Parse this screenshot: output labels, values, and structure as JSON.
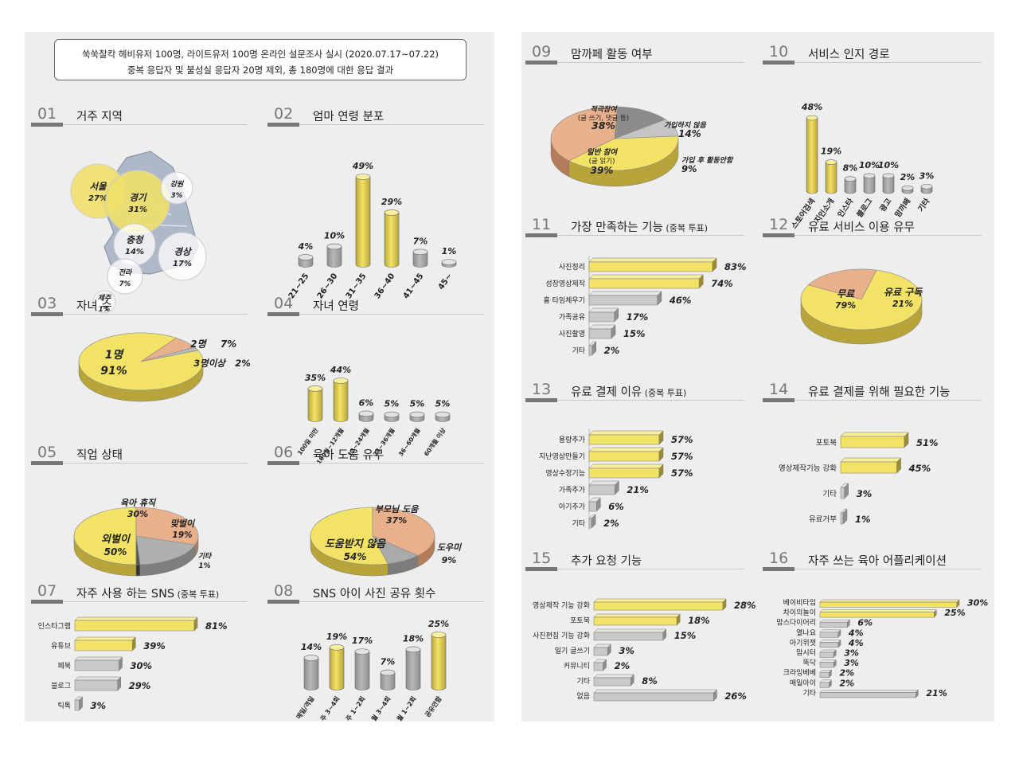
{
  "survey_note": {
    "line1": "쑥쑥찰칵 헤비유저 100명, 라이트유저 100명 온라인 설문조사 실시 (2020.07.17~07.22)",
    "line2": "중복 응답자 및 불성실 응답자 20명 제외, 총 180명에 대한 응답 결과"
  },
  "colors": {
    "yellow": "#f2e265",
    "peach": "#e9b08c",
    "gray": "#9a9a9a",
    "lightgray": "#c8c8c8",
    "bg": "#eeeeee"
  },
  "sections": {
    "s01": {
      "num": "01",
      "title": "거주 지역"
    },
    "s02": {
      "num": "02",
      "title": "엄마 연령 분포"
    },
    "s03": {
      "num": "03",
      "title": "자녀 수"
    },
    "s04": {
      "num": "04",
      "title": "자녀 연령"
    },
    "s05": {
      "num": "05",
      "title": "직업 상태"
    },
    "s06": {
      "num": "06",
      "title": "육아 도움 유무"
    },
    "s07": {
      "num": "07",
      "title": "자주 사용 하는 SNS",
      "note": "(중복 투표)"
    },
    "s08": {
      "num": "08",
      "title": "SNS 아이 사진 공유 횟수"
    },
    "s09": {
      "num": "09",
      "title": "맘까페 활동 여부"
    },
    "s10": {
      "num": "10",
      "title": "서비스 인지 경로"
    },
    "s11": {
      "num": "11",
      "title": "가장 만족하는 기능",
      "note": "(중복 투표)"
    },
    "s12": {
      "num": "12",
      "title": "유료 서비스 이용 유무"
    },
    "s13": {
      "num": "13",
      "title": "유료 결제 이유",
      "note": "(중복 투표)"
    },
    "s14": {
      "num": "14",
      "title": "유료 결제를 위해 필요한 기능"
    },
    "s15": {
      "num": "15",
      "title": "추가 요청 기능"
    },
    "s16": {
      "num": "16",
      "title": "자주 쓰는 육아 어플리케이션"
    }
  },
  "chart_data": [
    {
      "id": "c01",
      "type": "bubble-map",
      "unit": "%",
      "regions": [
        {
          "name": "서울",
          "value": 27
        },
        {
          "name": "경기",
          "value": 31
        },
        {
          "name": "강원",
          "value": 3
        },
        {
          "name": "충청",
          "value": 14
        },
        {
          "name": "경상",
          "value": 17
        },
        {
          "name": "전라",
          "value": 7
        },
        {
          "name": "제주",
          "value": 1
        }
      ]
    },
    {
      "id": "c02",
      "type": "bar",
      "unit": "%",
      "categories": [
        "21~25",
        "26~30",
        "31~35",
        "36~40",
        "41~45",
        "45~"
      ],
      "values": [
        4,
        10,
        49,
        29,
        7,
        1
      ],
      "highlight": [
        2,
        3
      ],
      "ylim": [
        0,
        49
      ]
    },
    {
      "id": "c03",
      "type": "pie",
      "unit": "%",
      "slices": [
        {
          "label": "1명",
          "value": 91
        },
        {
          "label": "2명",
          "value": 7
        },
        {
          "label": "3명이상",
          "value": 2
        }
      ]
    },
    {
      "id": "c04",
      "type": "bar",
      "unit": "%",
      "categories": [
        "100일 미만",
        "100일~12개월",
        "12~24개월",
        "24~36개월",
        "36~60개월",
        "60개월 이상"
      ],
      "values": [
        35,
        44,
        6,
        5,
        5,
        5
      ],
      "highlight": [
        0,
        1
      ],
      "ylim": [
        0,
        44
      ]
    },
    {
      "id": "c05",
      "type": "pie",
      "unit": "%",
      "slices": [
        {
          "label": "외벌이",
          "value": 50
        },
        {
          "label": "육아 휴직",
          "value": 30
        },
        {
          "label": "맞벌이",
          "value": 19
        },
        {
          "label": "기타",
          "value": 1
        }
      ]
    },
    {
      "id": "c06",
      "type": "pie",
      "unit": "%",
      "slices": [
        {
          "label": "도움받지 않음",
          "value": 54
        },
        {
          "label": "부모님 도움",
          "value": 37
        },
        {
          "label": "도우미",
          "value": 9
        }
      ]
    },
    {
      "id": "c07",
      "type": "hbar",
      "unit": "%",
      "categories": [
        "인스타그램",
        "유튜브",
        "페북",
        "블로그",
        "틱톡"
      ],
      "values": [
        81,
        39,
        30,
        29,
        3
      ],
      "highlight": [
        0,
        1
      ],
      "xlim": [
        0,
        81
      ]
    },
    {
      "id": "c08",
      "type": "bar",
      "unit": "%",
      "categories": [
        "매일/격일",
        "주 3~4회",
        "주 1~2회",
        "월 3~4회",
        "월 1~2회",
        "공유안함"
      ],
      "values": [
        14,
        19,
        17,
        7,
        18,
        25
      ],
      "highlight": [
        1,
        5
      ],
      "ylim": [
        0,
        25
      ]
    },
    {
      "id": "c09",
      "type": "pie",
      "unit": "%",
      "slices": [
        {
          "label": "일반 참여",
          "sublabel": "(글 읽기)",
          "value": 39
        },
        {
          "label": "적극참여",
          "sublabel": "(글 쓰기, 댓글 등)",
          "value": 38
        },
        {
          "label": "가입하지 않음",
          "value": 14
        },
        {
          "label": "가입 후 활동안함",
          "value": 9
        }
      ]
    },
    {
      "id": "c10",
      "type": "bar",
      "unit": "%",
      "categories": [
        "스토어검색",
        "지인소개",
        "인스타",
        "블로그",
        "광고",
        "맘까페",
        "기타"
      ],
      "values": [
        48,
        19,
        8,
        10,
        10,
        2,
        3
      ],
      "highlight": [
        0,
        1
      ],
      "ylim": [
        0,
        48
      ]
    },
    {
      "id": "c11",
      "type": "hbar",
      "unit": "%",
      "categories": [
        "사진정리",
        "성장영상제작",
        "흄 타임체우기",
        "가족공유",
        "사진촬영",
        "기타"
      ],
      "values": [
        83,
        74,
        46,
        17,
        15,
        2
      ],
      "highlight": [
        0,
        1
      ],
      "xlim": [
        0,
        83
      ]
    },
    {
      "id": "c12",
      "type": "pie",
      "unit": "%",
      "slices": [
        {
          "label": "무료",
          "value": 79
        },
        {
          "label": "유료 구독",
          "value": 21
        }
      ]
    },
    {
      "id": "c13",
      "type": "hbar",
      "unit": "%",
      "categories": [
        "용량추가",
        "지난영상만들기",
        "영상수정기능",
        "가족추가",
        "아기추가",
        "기타"
      ],
      "values": [
        57,
        57,
        57,
        21,
        6,
        2
      ],
      "highlight": [
        0,
        1,
        2
      ],
      "xlim": [
        0,
        57
      ]
    },
    {
      "id": "c14",
      "type": "hbar",
      "unit": "%",
      "categories": [
        "포토북",
        "영상제작기능 강화",
        "기타",
        "유료거부"
      ],
      "values": [
        51,
        45,
        3,
        1
      ],
      "highlight": [
        0,
        1
      ],
      "xlim": [
        0,
        51
      ]
    },
    {
      "id": "c15",
      "type": "hbar",
      "unit": "%",
      "categories": [
        "영상제작 기능 강화",
        "포토북",
        "사진편집 기능 강화",
        "일기 글쓰기",
        "커뮤니티",
        "기타",
        "없음"
      ],
      "values": [
        28,
        18,
        15,
        3,
        2,
        8,
        26
      ],
      "highlight": [
        0,
        1
      ],
      "xlim": [
        0,
        28
      ]
    },
    {
      "id": "c16",
      "type": "hbar",
      "unit": "%",
      "categories": [
        "베이비타임",
        "차이의놀이",
        "맘스다이어리",
        "열나요",
        "아기위젯",
        "맘시터",
        "똑닥",
        "크라잉베베",
        "매일아이",
        "기타"
      ],
      "values": [
        30,
        25,
        6,
        4,
        4,
        3,
        3,
        2,
        2,
        21
      ],
      "highlight": [
        0,
        1
      ],
      "xlim": [
        0,
        30
      ]
    }
  ]
}
